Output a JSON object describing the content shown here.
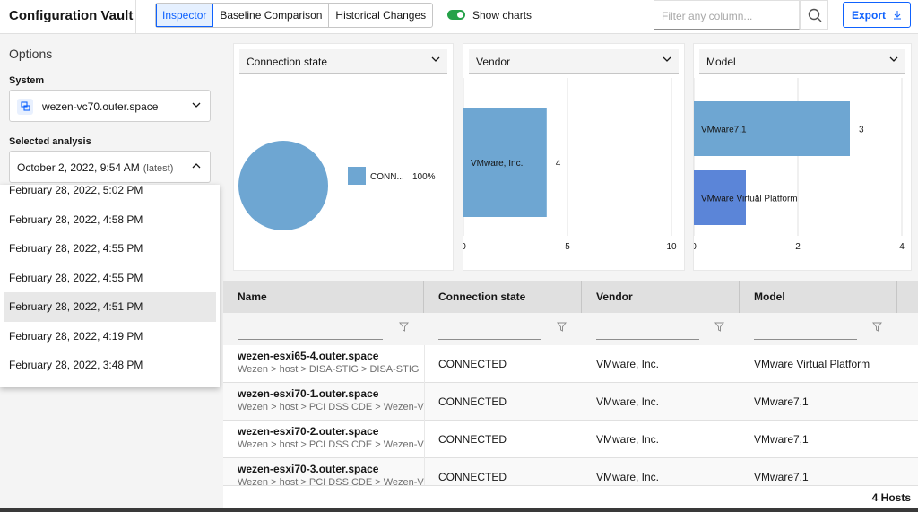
{
  "app": {
    "title": "Configuration Vault"
  },
  "tabs": [
    {
      "label": "Inspector",
      "active": true
    },
    {
      "label": "Baseline Comparison",
      "active": false
    },
    {
      "label": "Historical Changes",
      "active": false
    }
  ],
  "toggle": {
    "label": "Show charts",
    "on": true,
    "color": "#24a148"
  },
  "search": {
    "placeholder": "Filter any column..."
  },
  "export": {
    "label": "Export"
  },
  "options": {
    "title": "Options",
    "system_label": "System",
    "system_value": "wezen-vc70.outer.space",
    "analysis_label": "Selected analysis",
    "analysis_value": "October 2, 2022, 9:54 AM",
    "analysis_tag": "(latest)",
    "dropdown_items": [
      "February 28, 2022, 5:02 PM",
      "February 28, 2022, 4:58 PM",
      "February 28, 2022, 4:55 PM",
      "February 28, 2022, 4:55 PM",
      "February 28, 2022, 4:51 PM",
      "February 28, 2022, 4:19 PM",
      "February 28, 2022, 3:48 PM"
    ],
    "dropdown_highlighted_index": 4
  },
  "charts": [
    {
      "header": "Connection state"
    },
    {
      "header": "Vendor"
    },
    {
      "header": "Model"
    }
  ],
  "chart_data": [
    {
      "type": "pie",
      "title": "Connection state",
      "slices": [
        {
          "label": "CONN...",
          "value": 100,
          "display": "100%",
          "color": "#6ea6d2"
        }
      ]
    },
    {
      "type": "bar",
      "orientation": "horizontal",
      "title": "Vendor",
      "categories": [
        "VMware, Inc."
      ],
      "values": [
        4
      ],
      "xlim": [
        0,
        10
      ],
      "xticks": [
        "0",
        "5",
        "10"
      ],
      "color": "#6ea6d2",
      "grid": true
    },
    {
      "type": "bar",
      "orientation": "horizontal",
      "title": "Model",
      "categories": [
        "VMware7,1",
        "VMware Virtual Platform"
      ],
      "values": [
        3,
        1
      ],
      "xlim": [
        0,
        4
      ],
      "xticks": [
        "0",
        "2",
        "4"
      ],
      "colors": [
        "#6ea6d2",
        "#5b85d8"
      ],
      "grid": true
    }
  ],
  "table": {
    "columns": [
      "Name",
      "Connection state",
      "Vendor",
      "Model"
    ],
    "rows": [
      {
        "name": "wezen-esxi65-4.outer.space",
        "path": "Wezen > host > DISA-STIG > DISA-STIG",
        "state": "CONNECTED",
        "vendor": "VMware, Inc.",
        "model": "VMware Virtual Platform"
      },
      {
        "name": "wezen-esxi70-1.outer.space",
        "path": "Wezen > host > PCI DSS CDE > Wezen-VSAN",
        "state": "CONNECTED",
        "vendor": "VMware, Inc.",
        "model": "VMware7,1"
      },
      {
        "name": "wezen-esxi70-2.outer.space",
        "path": "Wezen > host > PCI DSS CDE > Wezen-VSAN",
        "state": "CONNECTED",
        "vendor": "VMware, Inc.",
        "model": "VMware7,1"
      },
      {
        "name": "wezen-esxi70-3.outer.space",
        "path": "Wezen > host > PCI DSS CDE > Wezen-VSAN",
        "state": "CONNECTED",
        "vendor": "VMware, Inc.",
        "model": "VMware7,1"
      }
    ],
    "footer": "4 Hosts"
  }
}
